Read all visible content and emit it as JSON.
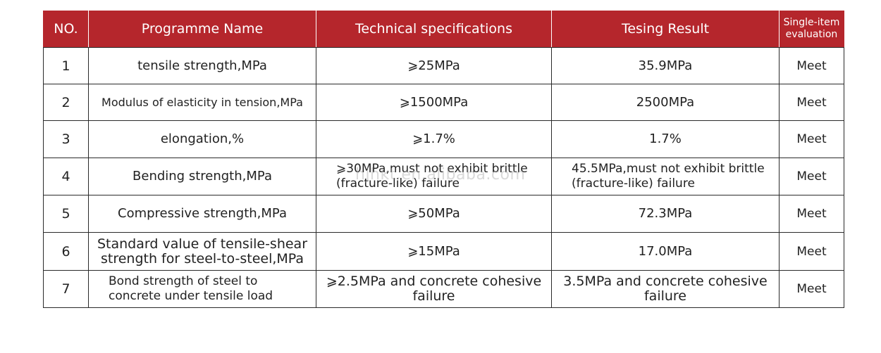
{
  "table": {
    "headers": [
      "NO.",
      "Programme Name",
      "Technical specifications",
      "Tesing Result",
      "Single-item evaluation"
    ],
    "rows": [
      {
        "no": "1",
        "name": "tensile strength,MPa",
        "spec": "⩾25MPa",
        "result": "35.9MPa",
        "eval": "Meet"
      },
      {
        "no": "2",
        "name": "Modulus of elasticity in tension,MPa",
        "spec": "⩾1500MPa",
        "result": "2500MPa",
        "eval": "Meet"
      },
      {
        "no": "3",
        "name": "elongation,%",
        "spec": "⩾1.7%",
        "result": "1.7%",
        "eval": "Meet"
      },
      {
        "no": "4",
        "name": "Bending strength,MPa",
        "spec": "⩾30MPa,must not exhibit brittle (fracture-like) failure",
        "result": "45.5MPa,must not exhibit brittle (fracture-like) failure",
        "eval": "Meet"
      },
      {
        "no": "5",
        "name": "Compressive strength,MPa",
        "spec": "⩾50MPa",
        "result": "72.3MPa",
        "eval": "Meet"
      },
      {
        "no": "6",
        "name": "Standard value of tensile-shear strength for steel-to-steel,MPa",
        "spec": "⩾15MPa",
        "result": "17.0MPa",
        "eval": "Meet"
      },
      {
        "no": "7",
        "name": "Bond strength of steel to concrete under tensile load",
        "spec": "⩾2.5MPa and concrete cohesive failure",
        "result": "3.5MPa and concrete cohesive failure",
        "eval": "Meet"
      }
    ]
  },
  "watermark": "hjhkt.en.alibaba.com"
}
